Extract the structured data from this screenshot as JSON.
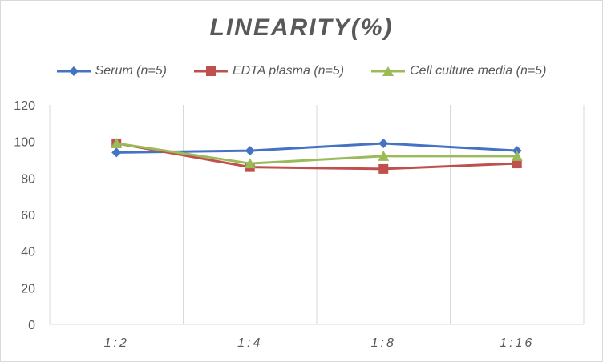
{
  "chart_data": {
    "type": "line",
    "title": "LINEARITY(%)",
    "xlabel": "",
    "ylabel": "",
    "categories": [
      "1:2",
      "1:4",
      "1:8",
      "1:16"
    ],
    "ylim": [
      0,
      120
    ],
    "yticks": [
      0,
      20,
      40,
      60,
      80,
      100,
      120
    ],
    "grid": "vertical",
    "legend_position": "top",
    "series": [
      {
        "name": "Serum (n=5)",
        "values": [
          94,
          95,
          99,
          95
        ],
        "color": "#4472c4",
        "marker": "diamond"
      },
      {
        "name": "EDTA plasma (n=5)",
        "values": [
          99,
          86,
          85,
          88
        ],
        "color": "#c0504d",
        "marker": "square"
      },
      {
        "name": "Cell culture media (n=5)",
        "values": [
          99,
          88,
          92,
          92
        ],
        "color": "#9bbb59",
        "marker": "triangle"
      }
    ]
  }
}
